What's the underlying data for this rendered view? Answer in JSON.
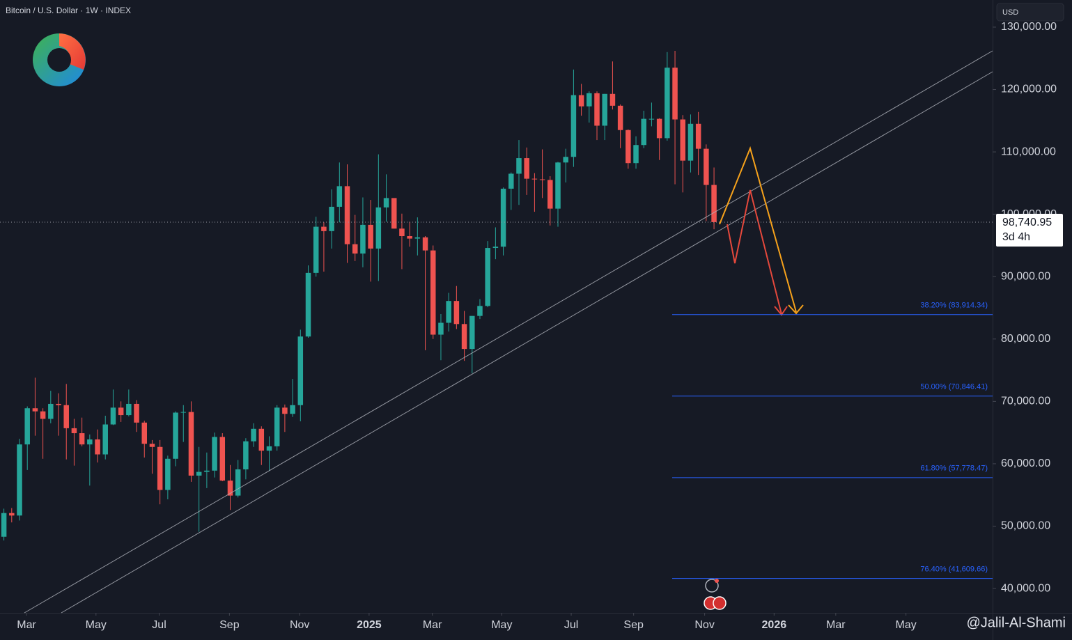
{
  "chart_data": {
    "type": "candlestick",
    "title": "Bitcoin / U.S. Dollar · 1W · INDEX",
    "currency": "USD",
    "watermark": "@Jalil-Al-Shami",
    "up_color": "#26a69a",
    "down_color": "#ef5350",
    "open": [
      48300,
      52100,
      51700,
      63100,
      68900,
      68400,
      67200,
      69600,
      69400,
      65700,
      64900,
      63100,
      63900,
      61500,
      66300,
      69000,
      67800,
      69600,
      66600,
      63200,
      62700,
      55800,
      60800,
      68200,
      68300,
      58100,
      58700,
      58900,
      64300,
      57300,
      54900,
      59100,
      63600,
      65600,
      62100,
      62800,
      69000,
      68000,
      69400,
      80400,
      90600,
      98000,
      97300,
      101200,
      104500,
      95200,
      93700,
      98300,
      94500,
      101100,
      102600,
      97700,
      96500,
      96100,
      96300,
      94200,
      80700,
      82600,
      86100,
      82400,
      78400,
      83700,
      85300,
      94600,
      94800,
      104100,
      106500,
      109000,
      105700,
      105600,
      105500,
      100900,
      108300,
      109200,
      119100,
      117300,
      119400,
      114200,
      119300,
      117400,
      113500,
      108200,
      111100,
      115300,
      115300,
      112200,
      123500,
      115200,
      108600,
      114500,
      110500,
      104700
    ],
    "high": [
      52800,
      52900,
      64000,
      69200,
      73800,
      68900,
      71700,
      71300,
      72800,
      67200,
      67400,
      64700,
      65500,
      67700,
      71900,
      70000,
      71900,
      70200,
      66900,
      63800,
      63800,
      61300,
      68400,
      69400,
      70000,
      62700,
      61800,
      65000,
      64900,
      59800,
      60600,
      64100,
      66500,
      66000,
      64400,
      69400,
      69500,
      73600,
      81500,
      91800,
      99600,
      98700,
      104000,
      108300,
      108000,
      99900,
      102700,
      102300,
      109600,
      106400,
      102500,
      100100,
      98800,
      99500,
      96500,
      95000,
      84000,
      87400,
      88500,
      84500,
      83700,
      86400,
      95700,
      97900,
      104300,
      106700,
      111900,
      110700,
      106600,
      110400,
      106100,
      108400,
      110500,
      123200,
      120900,
      119700,
      119700,
      119300,
      124500,
      117600,
      113600,
      112500,
      116600,
      117900,
      115400,
      126000,
      126200,
      115900,
      116000,
      116400,
      111200,
      107500
    ],
    "low": [
      47700,
      50600,
      50900,
      59000,
      64500,
      60800,
      66500,
      64500,
      60700,
      59700,
      62800,
      56500,
      60200,
      60700,
      66200,
      66700,
      67600,
      65100,
      61000,
      58400,
      53500,
      54300,
      59600,
      63500,
      57100,
      49100,
      56100,
      57800,
      57200,
      52600,
      54600,
      57500,
      62700,
      59800,
      58900,
      62100,
      65100,
      67500,
      66800,
      80200,
      90000,
      90800,
      94500,
      98700,
      92200,
      92500,
      91500,
      89200,
      89300,
      98800,
      97700,
      91200,
      94800,
      93400,
      78200,
      80000,
      76600,
      81200,
      81600,
      76500,
      74500,
      83200,
      85100,
      92800,
      93400,
      100700,
      101500,
      103100,
      100400,
      102600,
      98200,
      98000,
      105100,
      107600,
      115800,
      114700,
      111900,
      111900,
      116800,
      110600,
      107300,
      107300,
      110600,
      114100,
      108700,
      111800,
      104800,
      103500,
      106700,
      106300,
      98900,
      97600
    ],
    "close": [
      52100,
      51700,
      63100,
      68900,
      68400,
      67200,
      69600,
      69400,
      65700,
      64900,
      63100,
      63900,
      61500,
      66300,
      69000,
      67800,
      69600,
      66600,
      63200,
      62700,
      55800,
      60800,
      68200,
      68300,
      58100,
      58700,
      58900,
      64300,
      57300,
      54900,
      59100,
      63600,
      65600,
      62100,
      62800,
      69000,
      68000,
      69400,
      80400,
      90600,
      98000,
      97300,
      101200,
      104500,
      95200,
      93700,
      98300,
      94500,
      101100,
      102600,
      97700,
      96500,
      96100,
      96300,
      94200,
      80700,
      82600,
      86100,
      82400,
      78400,
      83700,
      85300,
      94600,
      94800,
      104100,
      106500,
      109000,
      105700,
      105600,
      105500,
      100900,
      108300,
      109200,
      119100,
      117300,
      119400,
      114200,
      119300,
      117400,
      113500,
      108200,
      111100,
      115300,
      115300,
      112200,
      123500,
      115200,
      108600,
      114500,
      110500,
      104700,
      98740.95
    ],
    "last_price": 98740.95,
    "last_price_label": "98,740.95",
    "countdown": "3d 4h",
    "xlim": [
      -0.5,
      126.7
    ],
    "xticks": [
      {
        "value": 2.9,
        "label": "Mar"
      },
      {
        "value": 11.8,
        "label": "May"
      },
      {
        "value": 19.9,
        "label": "Jul"
      },
      {
        "value": 28.9,
        "label": "Sep"
      },
      {
        "value": 37.9,
        "label": "Nov"
      },
      {
        "value": 46.8,
        "label": "2025"
      },
      {
        "value": 54.9,
        "label": "Mar"
      },
      {
        "value": 63.8,
        "label": "May"
      },
      {
        "value": 72.7,
        "label": "Jul"
      },
      {
        "value": 80.7,
        "label": "Sep"
      },
      {
        "value": 89.8,
        "label": "Nov"
      },
      {
        "value": 98.7,
        "label": "2026"
      },
      {
        "value": 106.6,
        "label": "Mar"
      },
      {
        "value": 115.6,
        "label": "May"
      }
    ],
    "ylim": [
      36100,
      134350
    ],
    "yticks": [
      {
        "value": 40000,
        "label": "40,000.00"
      },
      {
        "value": 50000,
        "label": "50,000.00"
      },
      {
        "value": 60000,
        "label": "60,000.00"
      },
      {
        "value": 70000,
        "label": "70,000.00"
      },
      {
        "value": 80000,
        "label": "80,000.00"
      },
      {
        "value": 90000,
        "label": "90,000.00"
      },
      {
        "value": 100000,
        "label": "100,000.00"
      },
      {
        "value": 110000,
        "label": "110,000.00"
      },
      {
        "value": 120000,
        "label": "120,000.00"
      },
      {
        "value": 130000,
        "label": "130,000.00"
      }
    ],
    "fib_levels": [
      {
        "value": 83914.34,
        "label": "38.20% (83,914.34)"
      },
      {
        "value": 70846.41,
        "label": "50.00% (70,846.41)"
      },
      {
        "value": 57778.47,
        "label": "61.80% (57,778.47)"
      },
      {
        "value": 41609.66,
        "label": "76.40% (41,609.66)"
      }
    ],
    "fib_color": "#2962ff"
  }
}
